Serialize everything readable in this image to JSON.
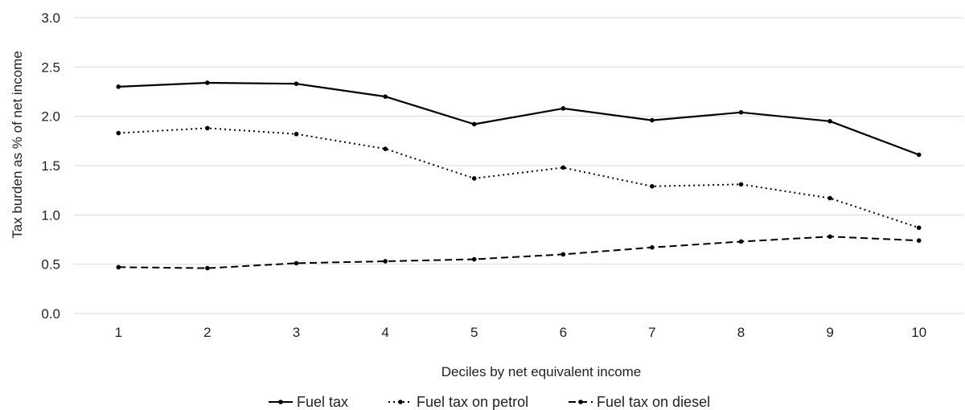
{
  "chart_data": {
    "type": "line",
    "title": "",
    "xlabel": "Deciles by net equivalent income",
    "ylabel": "Tax burden as % of net income",
    "categories": [
      "1",
      "2",
      "3",
      "4",
      "5",
      "6",
      "7",
      "8",
      "9",
      "10"
    ],
    "y_ticks": [
      "0.0",
      "0.5",
      "1.0",
      "1.5",
      "2.0",
      "2.5",
      "3.0"
    ],
    "ylim": [
      0,
      3
    ],
    "grid": true,
    "legend_position": "bottom",
    "series": [
      {
        "name": "Fuel tax",
        "style": "solid",
        "color": "#000000",
        "values": [
          2.3,
          2.34,
          2.33,
          2.2,
          1.92,
          2.08,
          1.96,
          2.04,
          1.95,
          1.61
        ]
      },
      {
        "name": "Fuel tax on petrol",
        "style": "dotted",
        "color": "#000000",
        "values": [
          1.83,
          1.88,
          1.82,
          1.67,
          1.37,
          1.48,
          1.29,
          1.31,
          1.17,
          0.87
        ]
      },
      {
        "name": "Fuel tax on diesel",
        "style": "dashed",
        "color": "#000000",
        "values": [
          0.47,
          0.46,
          0.51,
          0.53,
          0.55,
          0.6,
          0.67,
          0.73,
          0.78,
          0.74
        ]
      }
    ]
  }
}
